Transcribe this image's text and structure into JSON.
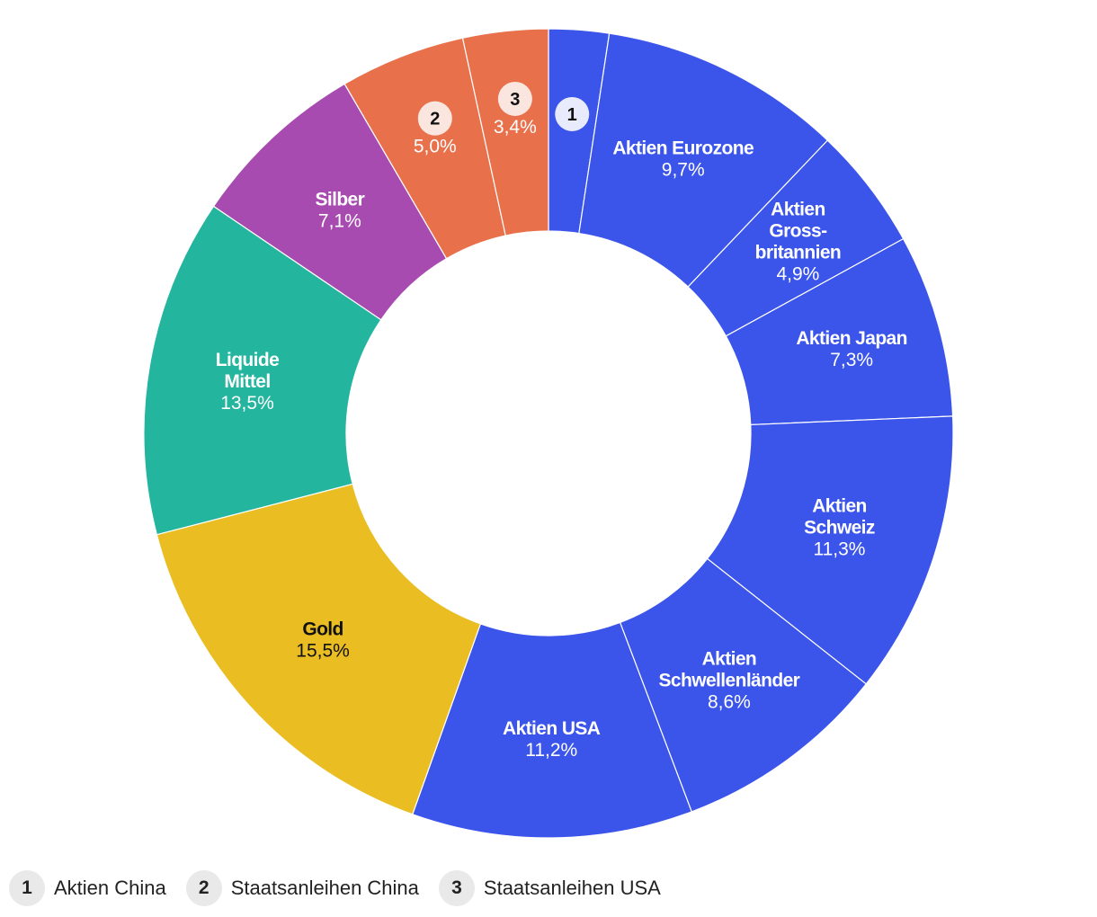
{
  "chart_data": {
    "type": "pie",
    "variant": "donut",
    "slices": [
      {
        "key": "1",
        "label": "Aktien China",
        "value": 2.4,
        "value_label": "",
        "color": "#3b54ea",
        "text_color": "#ffffff",
        "marker": "1"
      },
      {
        "key": "2",
        "label": "Aktien Eurozone",
        "value": 9.7,
        "value_label": "9,7%",
        "color": "#3b54ea",
        "text_color": "#ffffff"
      },
      {
        "key": "3",
        "label": "Aktien Gross- britannien",
        "value": 4.9,
        "value_label": "4,9%",
        "color": "#3b54ea",
        "text_color": "#ffffff"
      },
      {
        "key": "4",
        "label": "Aktien Japan",
        "value": 7.3,
        "value_label": "7,3%",
        "color": "#3b54ea",
        "text_color": "#ffffff"
      },
      {
        "key": "5",
        "label": "Aktien Schweiz",
        "value": 11.3,
        "value_label": "11,3%",
        "color": "#3b54ea",
        "text_color": "#ffffff"
      },
      {
        "key": "6",
        "label": "Aktien Schwellenländer",
        "value": 8.6,
        "value_label": "8,6%",
        "color": "#3b54ea",
        "text_color": "#ffffff"
      },
      {
        "key": "7",
        "label": "Aktien USA",
        "value": 11.2,
        "value_label": "11,2%",
        "color": "#3b54ea",
        "text_color": "#ffffff"
      },
      {
        "key": "8",
        "label": "Gold",
        "value": 15.5,
        "value_label": "15,5%",
        "color": "#eabd22",
        "text_color": "#111111"
      },
      {
        "key": "9",
        "label": "Liquide Mittel",
        "value": 13.5,
        "value_label": "13,5%",
        "color": "#24b59e",
        "text_color": "#ffffff"
      },
      {
        "key": "10",
        "label": "Silber",
        "value": 7.1,
        "value_label": "7,1%",
        "color": "#a84bb0",
        "text_color": "#ffffff"
      },
      {
        "key": "11",
        "label": "Staatsanleihen China",
        "value": 5.0,
        "value_label": "5,0%",
        "color": "#e8704a",
        "text_color": "#ffffff",
        "marker": "2"
      },
      {
        "key": "12",
        "label": "Staatsanleihen USA",
        "value": 3.4,
        "value_label": "3,4%",
        "color": "#e8704a",
        "text_color": "#ffffff",
        "marker": "3"
      }
    ],
    "legend": [
      {
        "badge": "1",
        "label": "Aktien China"
      },
      {
        "badge": "2",
        "label": "Staatsanleihen China"
      },
      {
        "badge": "3",
        "label": "Staatsanleihen USA"
      }
    ],
    "legend_position": "bottom-left"
  }
}
